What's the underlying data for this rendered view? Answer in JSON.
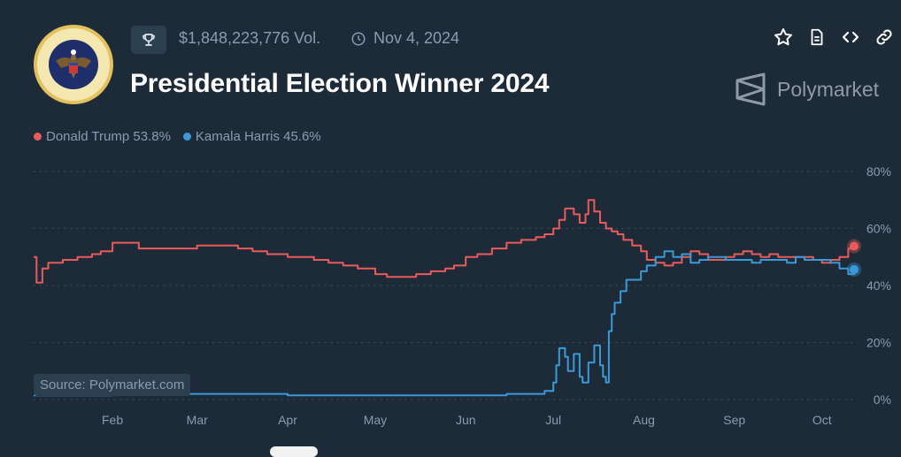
{
  "header": {
    "volume": "$1,848,223,776 Vol.",
    "date": "Nov 4, 2024",
    "title": "Presidential Election Winner 2024",
    "brand": "Polymarket"
  },
  "icons": {
    "seal": "presidential-seal",
    "trophy": "trophy-icon",
    "clock": "clock-icon",
    "star": "star-icon",
    "document": "document-icon",
    "embed": "code-icon",
    "link": "link-icon",
    "logo": "polymarket-logo"
  },
  "legend": [
    {
      "label": "Donald Trump 53.8%",
      "color": "#e95b5b"
    },
    {
      "label": "Kamala Harris 45.6%",
      "color": "#3a9ad8"
    }
  ],
  "source": "Source: Polymarket.com",
  "chart_data": {
    "type": "line",
    "x_ticks": [
      "Feb",
      "Mar",
      "Apr",
      "May",
      "Jun",
      "Jul",
      "Aug",
      "Sep",
      "Oct"
    ],
    "y_ticks": [
      "80%",
      "60%",
      "40%",
      "20%",
      "0%"
    ],
    "ylim": [
      0,
      80
    ],
    "grid": "horizontal dotted",
    "series": [
      {
        "name": "Donald Trump",
        "color": "#e95b5b",
        "end_value": 53.8,
        "x": [
          "2024-01-05",
          "2024-01-06",
          "2024-01-08",
          "2024-01-10",
          "2024-01-12",
          "2024-01-15",
          "2024-01-20",
          "2024-01-25",
          "2024-01-28",
          "2024-02-01",
          "2024-02-05",
          "2024-02-10",
          "2024-02-15",
          "2024-02-20",
          "2024-02-25",
          "2024-03-01",
          "2024-03-05",
          "2024-03-10",
          "2024-03-15",
          "2024-03-20",
          "2024-03-25",
          "2024-04-01",
          "2024-04-05",
          "2024-04-10",
          "2024-04-15",
          "2024-04-20",
          "2024-04-25",
          "2024-05-01",
          "2024-05-05",
          "2024-05-10",
          "2024-05-15",
          "2024-05-20",
          "2024-05-25",
          "2024-05-28",
          "2024-06-01",
          "2024-06-05",
          "2024-06-10",
          "2024-06-15",
          "2024-06-20",
          "2024-06-25",
          "2024-06-28",
          "2024-07-01",
          "2024-07-03",
          "2024-07-05",
          "2024-07-08",
          "2024-07-10",
          "2024-07-12",
          "2024-07-13",
          "2024-07-15",
          "2024-07-17",
          "2024-07-19",
          "2024-07-21",
          "2024-07-23",
          "2024-07-25",
          "2024-07-28",
          "2024-07-31",
          "2024-08-02",
          "2024-08-05",
          "2024-08-08",
          "2024-08-11",
          "2024-08-14",
          "2024-08-17",
          "2024-08-20",
          "2024-08-23",
          "2024-08-26",
          "2024-08-29",
          "2024-09-01",
          "2024-09-04",
          "2024-09-07",
          "2024-09-10",
          "2024-09-13",
          "2024-09-16",
          "2024-09-19",
          "2024-09-22",
          "2024-09-25",
          "2024-09-28",
          "2024-10-01",
          "2024-10-04",
          "2024-10-07",
          "2024-10-10",
          "2024-10-12"
        ],
        "values": [
          50,
          41,
          46,
          48,
          48,
          49,
          50,
          51,
          52,
          55,
          55,
          53,
          53,
          53,
          53,
          54,
          54,
          54,
          53,
          52,
          51,
          50,
          50,
          49,
          48,
          47,
          46,
          44,
          43,
          43,
          44,
          45,
          46,
          47,
          50,
          51,
          53,
          55,
          56,
          57,
          58,
          60,
          63,
          67,
          65,
          62,
          65,
          70,
          66,
          62,
          60,
          59,
          58,
          56,
          54,
          52,
          49,
          48,
          47,
          48,
          50,
          52,
          51,
          49,
          49,
          50,
          51,
          52,
          51,
          50,
          51,
          50,
          50,
          50,
          50,
          49,
          48,
          49,
          50,
          53,
          54
        ],
        "dashed": false
      },
      {
        "name": "Kamala Harris",
        "color": "#3a9ad8",
        "end_value": 45.6,
        "x": [
          "2024-01-05",
          "2024-01-15",
          "2024-02-01",
          "2024-02-15",
          "2024-03-01",
          "2024-03-15",
          "2024-04-01",
          "2024-04-15",
          "2024-05-01",
          "2024-05-15",
          "2024-06-01",
          "2024-06-10",
          "2024-06-15",
          "2024-06-20",
          "2024-06-25",
          "2024-06-28",
          "2024-07-01",
          "2024-07-02",
          "2024-07-03",
          "2024-07-05",
          "2024-07-06",
          "2024-07-08",
          "2024-07-10",
          "2024-07-11",
          "2024-07-13",
          "2024-07-15",
          "2024-07-17",
          "2024-07-18",
          "2024-07-19",
          "2024-07-20",
          "2024-07-21",
          "2024-07-22",
          "2024-07-24",
          "2024-07-26",
          "2024-07-28",
          "2024-07-31",
          "2024-08-02",
          "2024-08-05",
          "2024-08-08",
          "2024-08-11",
          "2024-08-14",
          "2024-08-17",
          "2024-08-20",
          "2024-08-23",
          "2024-08-26",
          "2024-08-29",
          "2024-09-01",
          "2024-09-04",
          "2024-09-07",
          "2024-09-10",
          "2024-09-13",
          "2024-09-16",
          "2024-09-19",
          "2024-09-22",
          "2024-09-25",
          "2024-09-28",
          "2024-10-01",
          "2024-10-04",
          "2024-10-07",
          "2024-10-10",
          "2024-10-12"
        ],
        "values": [
          1.5,
          1.5,
          2,
          2,
          2,
          2,
          1.5,
          1.5,
          1.5,
          1.5,
          1.5,
          1.5,
          2,
          2,
          2,
          3,
          6,
          12,
          18,
          15,
          10,
          16,
          8,
          6,
          13,
          19,
          12,
          8,
          6,
          24,
          30,
          34,
          38,
          42,
          42,
          45,
          47,
          50,
          52,
          50,
          51,
          48,
          49,
          50,
          50,
          49,
          49,
          49,
          48,
          49,
          49,
          49,
          48,
          50,
          49,
          49,
          49,
          48,
          46,
          44,
          46
        ],
        "dashed": false
      }
    ]
  }
}
